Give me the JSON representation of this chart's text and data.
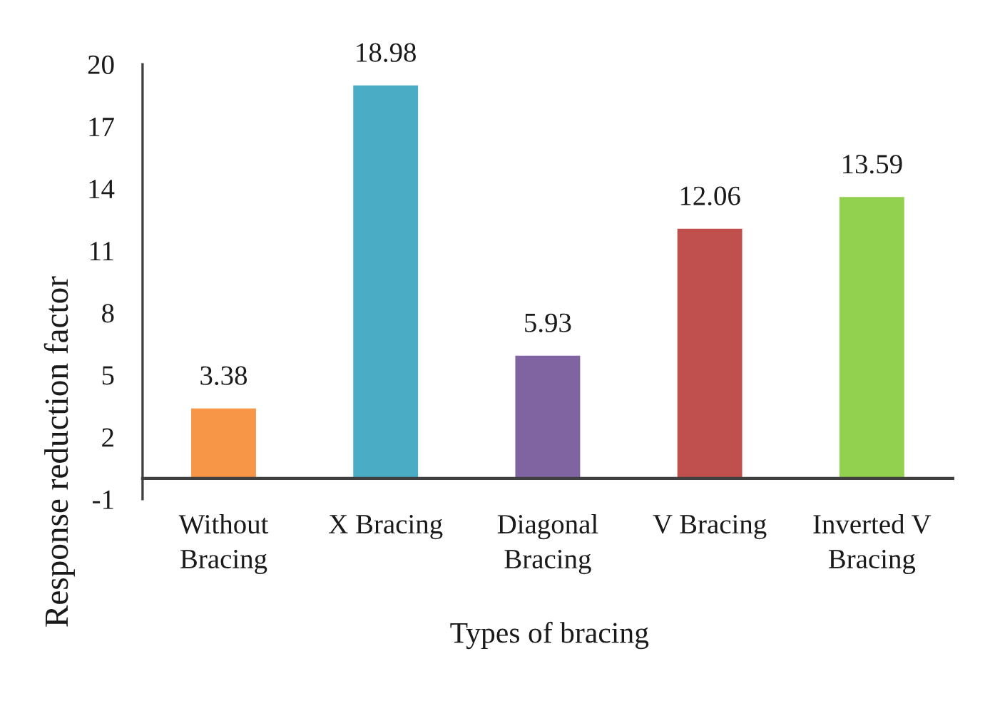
{
  "chart_data": {
    "type": "bar",
    "xlabel": "Types of bracing",
    "ylabel": "Response reduction factor",
    "categories": [
      "Without\nBracing",
      "X Bracing",
      "Diagonal\nBracing",
      "V Bracing",
      "Inverted V\nBracing"
    ],
    "values": [
      3.38,
      18.98,
      5.93,
      12.06,
      13.59
    ],
    "colors": [
      "#f79646",
      "#4bacc6",
      "#8064a2",
      "#c0504d",
      "#92d050"
    ],
    "ylim": [
      -1,
      20
    ],
    "yticks": [
      -1,
      2,
      5,
      8,
      11,
      14,
      17,
      20
    ],
    "data_labels": true,
    "grid": false,
    "legend": false
  }
}
